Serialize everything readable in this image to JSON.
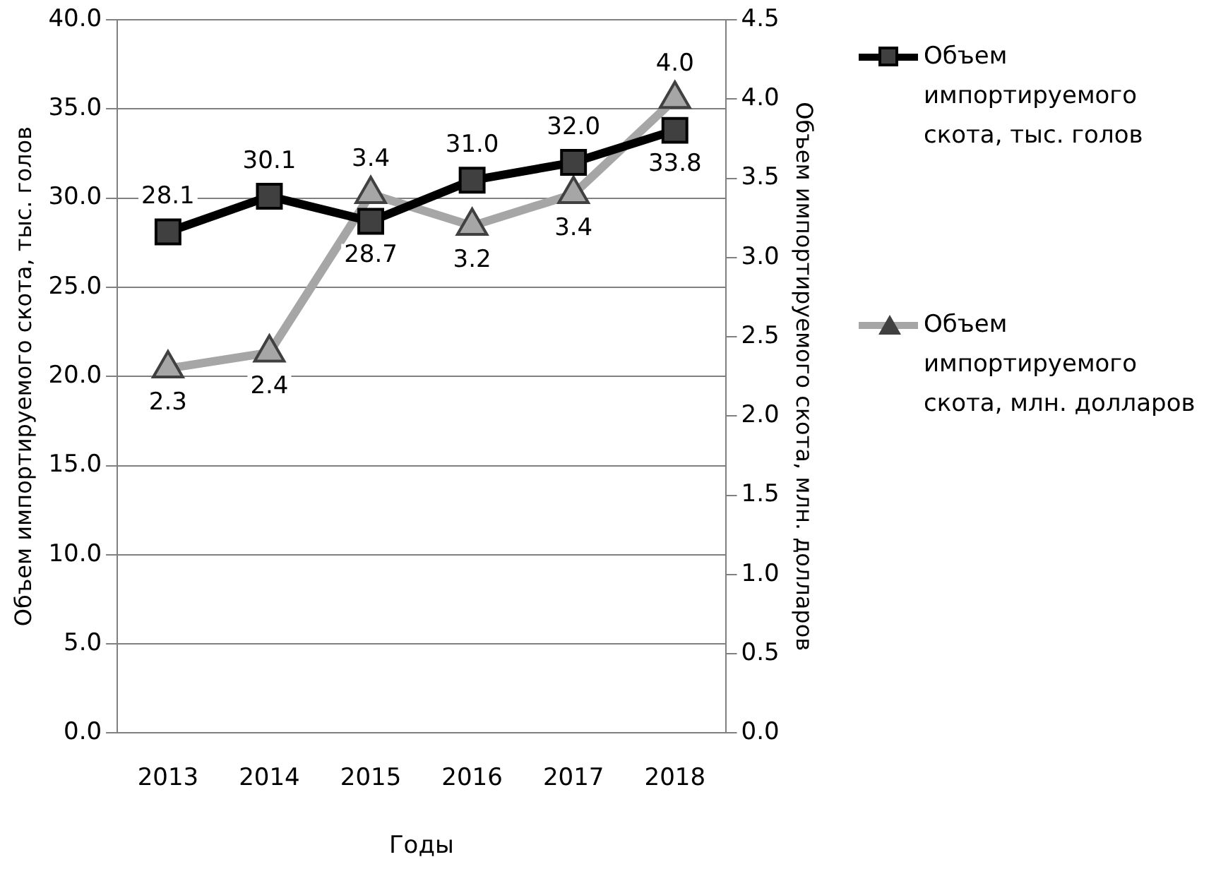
{
  "chart_data": {
    "type": "line",
    "xlabel": "Годы",
    "ylabel": "Объем импортируемого скота, тыс. голов",
    "y2label": "Объем импортируемого скота, млн. долларов",
    "categories": [
      "2013",
      "2014",
      "2015",
      "2016",
      "2017",
      "2018"
    ],
    "series": [
      {
        "name": "Объем импортируемого скота, тыс. голов",
        "color": "#000000",
        "marker": "square",
        "values": [
          28.1,
          30.1,
          28.7,
          31.0,
          32.0,
          33.8
        ],
        "value_labels": [
          "28.1",
          "30.1",
          "28.7",
          "31.0",
          "32.0",
          "33.8"
        ]
      },
      {
        "name": "Объем импортируемого скота, млн. долларов",
        "color": "#a6a6a6",
        "marker": "triangle",
        "axis": "y2",
        "values": [
          2.3,
          2.4,
          3.4,
          3.2,
          3.4,
          4.0
        ],
        "value_labels": [
          "2.3",
          "2.4",
          "3.4",
          "3.2",
          "3.4",
          "4.0"
        ]
      }
    ],
    "ylim": [
      0,
      40
    ],
    "yticks": [
      {
        "value": 0,
        "label": "0.0"
      },
      {
        "value": 5,
        "label": "5.0"
      },
      {
        "value": 10,
        "label": "10.0"
      },
      {
        "value": 15,
        "label": "15.0"
      },
      {
        "value": 20,
        "label": "20.0"
      },
      {
        "value": 25,
        "label": "25.0"
      },
      {
        "value": 30,
        "label": "30.0"
      },
      {
        "value": 35,
        "label": "35.0"
      },
      {
        "value": 40,
        "label": "40.0"
      }
    ],
    "y2lim": [
      0,
      4.5
    ],
    "y2ticks": [
      {
        "value": 0,
        "label": "0.0"
      },
      {
        "value": 0.5,
        "label": "0.5"
      },
      {
        "value": 1,
        "label": "1.0"
      },
      {
        "value": 1.5,
        "label": "1.5"
      },
      {
        "value": 2,
        "label": "2.0"
      },
      {
        "value": 2.5,
        "label": "2.5"
      },
      {
        "value": 3,
        "label": "3.0"
      },
      {
        "value": 3.5,
        "label": "3.5"
      },
      {
        "value": 4,
        "label": "4.0"
      },
      {
        "value": 4.5,
        "label": "4.5"
      }
    ],
    "grid": "y",
    "legend": "right",
    "line_style": "solid"
  }
}
